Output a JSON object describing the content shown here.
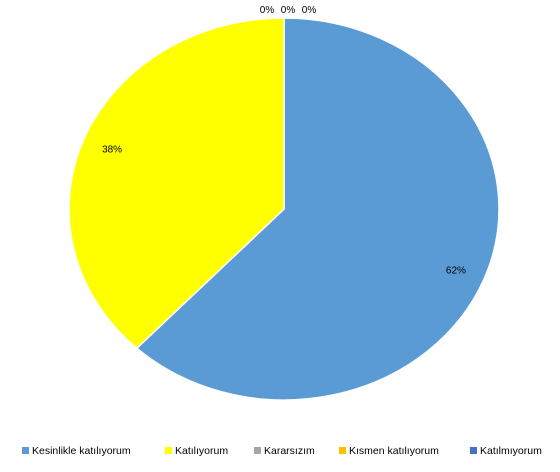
{
  "chart_data": {
    "type": "pie",
    "title": "",
    "categories": [
      "Kesinlikle katılıyorum",
      "Katılıyorum",
      "Kararsızım",
      "Kısmen katılıyorum",
      "Katılmıyorum"
    ],
    "values": [
      62,
      38,
      0,
      0,
      0
    ],
    "labels": [
      "62%",
      "38%",
      "0%",
      "0%",
      "0%"
    ],
    "colors": [
      "#5b9bd5",
      "#ffff00",
      "#a5a5a5",
      "#ffc000",
      "#4472c4"
    ],
    "legend_position": "bottom",
    "slice_border_color": "#ffffff"
  }
}
